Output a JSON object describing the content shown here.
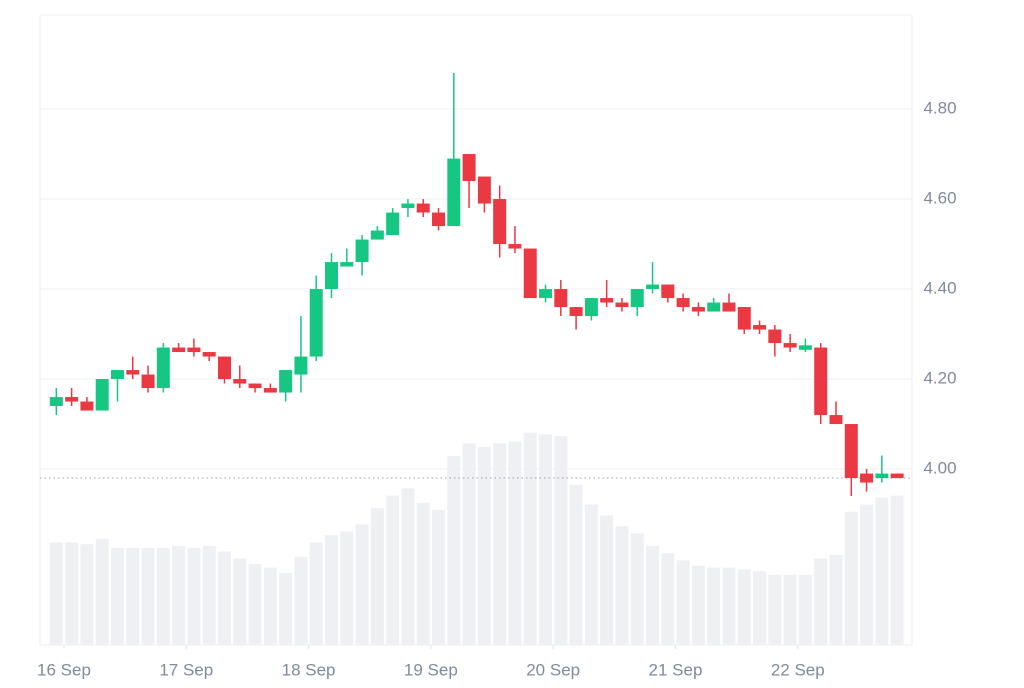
{
  "chart_data": {
    "type": "candlestick",
    "x": [
      15.9375,
      16.0625,
      16.1875,
      16.3125,
      16.4375,
      16.5625,
      16.6875,
      16.8125,
      16.9375,
      17.0625,
      17.1875,
      17.3125,
      17.4375,
      17.5625,
      17.6875,
      17.8125,
      17.9375,
      18.0625,
      18.1875,
      18.3125,
      18.4375,
      18.5625,
      18.6875,
      18.8125,
      18.9375,
      19.0625,
      19.1875,
      19.3125,
      19.4375,
      19.5625,
      19.6875,
      19.8125,
      19.9375,
      20.0625,
      20.1875,
      20.3125,
      20.4375,
      20.5625,
      20.6875,
      20.8125,
      20.9375,
      21.0625,
      21.1875,
      21.3125,
      21.4375,
      21.5625,
      21.6875,
      21.8125,
      21.9375,
      22.0625,
      22.1875,
      22.3125,
      22.4375,
      22.5625,
      22.6875,
      22.8125
    ],
    "open": [
      4.14,
      4.16,
      4.15,
      4.13,
      4.2,
      4.22,
      4.21,
      4.18,
      4.27,
      4.27,
      4.26,
      4.25,
      4.2,
      4.19,
      4.18,
      4.17,
      4.21,
      4.25,
      4.4,
      4.45,
      4.46,
      4.51,
      4.52,
      4.58,
      4.59,
      4.57,
      4.54,
      4.7,
      4.65,
      4.6,
      4.5,
      4.49,
      4.38,
      4.4,
      4.36,
      4.34,
      4.38,
      4.37,
      4.36,
      4.4,
      4.41,
      4.38,
      4.36,
      4.35,
      4.37,
      4.36,
      4.32,
      4.31,
      4.28,
      4.265,
      4.27,
      4.12,
      4.1,
      3.99,
      3.98,
      3.99
    ],
    "high": [
      4.18,
      4.18,
      4.16,
      4.2,
      4.22,
      4.25,
      4.23,
      4.28,
      4.28,
      4.29,
      4.26,
      4.25,
      4.23,
      4.19,
      4.19,
      4.22,
      4.34,
      4.43,
      4.48,
      4.49,
      4.52,
      4.54,
      4.58,
      4.6,
      4.6,
      4.58,
      4.88,
      4.7,
      4.65,
      4.63,
      4.54,
      4.49,
      4.41,
      4.42,
      4.36,
      4.38,
      4.42,
      4.38,
      4.4,
      4.46,
      4.41,
      4.39,
      4.37,
      4.38,
      4.39,
      4.36,
      4.33,
      4.32,
      4.3,
      4.29,
      4.28,
      4.15,
      4.1,
      4.0,
      4.03,
      3.99
    ],
    "low": [
      4.12,
      4.14,
      4.13,
      4.13,
      4.15,
      4.2,
      4.17,
      4.17,
      4.26,
      4.25,
      4.24,
      4.19,
      4.18,
      4.17,
      4.17,
      4.15,
      4.17,
      4.24,
      4.38,
      4.45,
      4.43,
      4.51,
      4.52,
      4.56,
      4.56,
      4.53,
      4.54,
      4.58,
      4.57,
      4.47,
      4.48,
      4.38,
      4.37,
      4.34,
      4.31,
      4.33,
      4.36,
      4.35,
      4.34,
      4.39,
      4.37,
      4.35,
      4.34,
      4.35,
      4.35,
      4.3,
      4.3,
      4.25,
      4.26,
      4.26,
      4.1,
      4.1,
      3.94,
      3.95,
      3.97,
      3.98
    ],
    "close": [
      4.16,
      4.15,
      4.13,
      4.2,
      4.22,
      4.21,
      4.18,
      4.27,
      4.26,
      4.26,
      4.25,
      4.2,
      4.19,
      4.18,
      4.17,
      4.22,
      4.25,
      4.4,
      4.46,
      4.46,
      4.51,
      4.53,
      4.57,
      4.59,
      4.57,
      4.54,
      4.69,
      4.64,
      4.59,
      4.5,
      4.49,
      4.38,
      4.4,
      4.36,
      4.34,
      4.38,
      4.37,
      4.36,
      4.4,
      4.41,
      4.38,
      4.36,
      4.35,
      4.37,
      4.35,
      4.31,
      4.31,
      4.28,
      4.27,
      4.275,
      4.12,
      4.1,
      3.98,
      3.97,
      3.99,
      3.98
    ],
    "volume": [
      57,
      57,
      56,
      59,
      54,
      54,
      54,
      54,
      55,
      54,
      55,
      52,
      48,
      45,
      43,
      40,
      49,
      57,
      61,
      63,
      67,
      76,
      83,
      87,
      79,
      75,
      105,
      112,
      110,
      112,
      113,
      118,
      117,
      116,
      89,
      78,
      72,
      66,
      62,
      55,
      51,
      47,
      44,
      43,
      43,
      42,
      41,
      39,
      39,
      39,
      48,
      50,
      74,
      78,
      82,
      83
    ],
    "up_color": "#16c784",
    "down_color": "#ea3943",
    "volume_color": "#eef0f3",
    "last_price": 3.98,
    "xlim": [
      15.804,
      22.934
    ],
    "xticks": [
      {
        "value": 16,
        "label": "16 Sep"
      },
      {
        "value": 17,
        "label": "17 Sep"
      },
      {
        "value": 18,
        "label": "18 Sep"
      },
      {
        "value": 19,
        "label": "19 Sep"
      },
      {
        "value": 20,
        "label": "20 Sep"
      },
      {
        "value": 21,
        "label": "21 Sep"
      },
      {
        "value": 22,
        "label": "22 Sep"
      }
    ],
    "ylim": [
      3.609,
      5.009
    ],
    "yticks": [
      {
        "value": 4,
        "label": "4.00"
      },
      {
        "value": 4.2,
        "label": "4.20"
      },
      {
        "value": 4.4,
        "label": "4.40"
      },
      {
        "value": 4.6,
        "label": "4.60"
      },
      {
        "value": 4.8,
        "label": "4.80"
      }
    ],
    "volume_lim": [
      0,
      350
    ],
    "grid": true
  }
}
